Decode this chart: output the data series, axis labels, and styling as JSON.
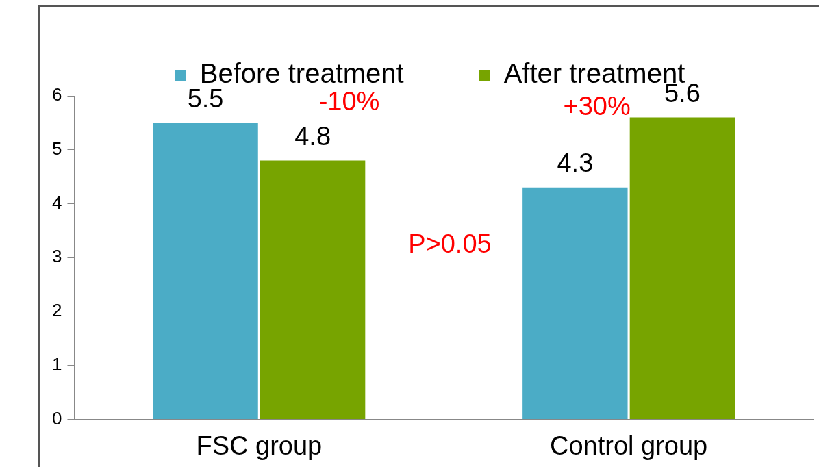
{
  "chart_data": {
    "type": "bar",
    "categories": [
      "FSC group",
      "Control group"
    ],
    "series": [
      {
        "name": "Before treatment",
        "color": "#4bacc6",
        "values": [
          5.5,
          4.3
        ]
      },
      {
        "name": "After treatment",
        "color": "#77a400",
        "values": [
          4.8,
          5.6
        ]
      }
    ],
    "ylim": [
      0,
      6
    ],
    "yticks": [
      0,
      1,
      2,
      3,
      4,
      5,
      6
    ],
    "grid": false,
    "legend": "top",
    "data_labels": true,
    "annotations": [
      "-10%",
      "+30%",
      "P>0.05"
    ]
  }
}
